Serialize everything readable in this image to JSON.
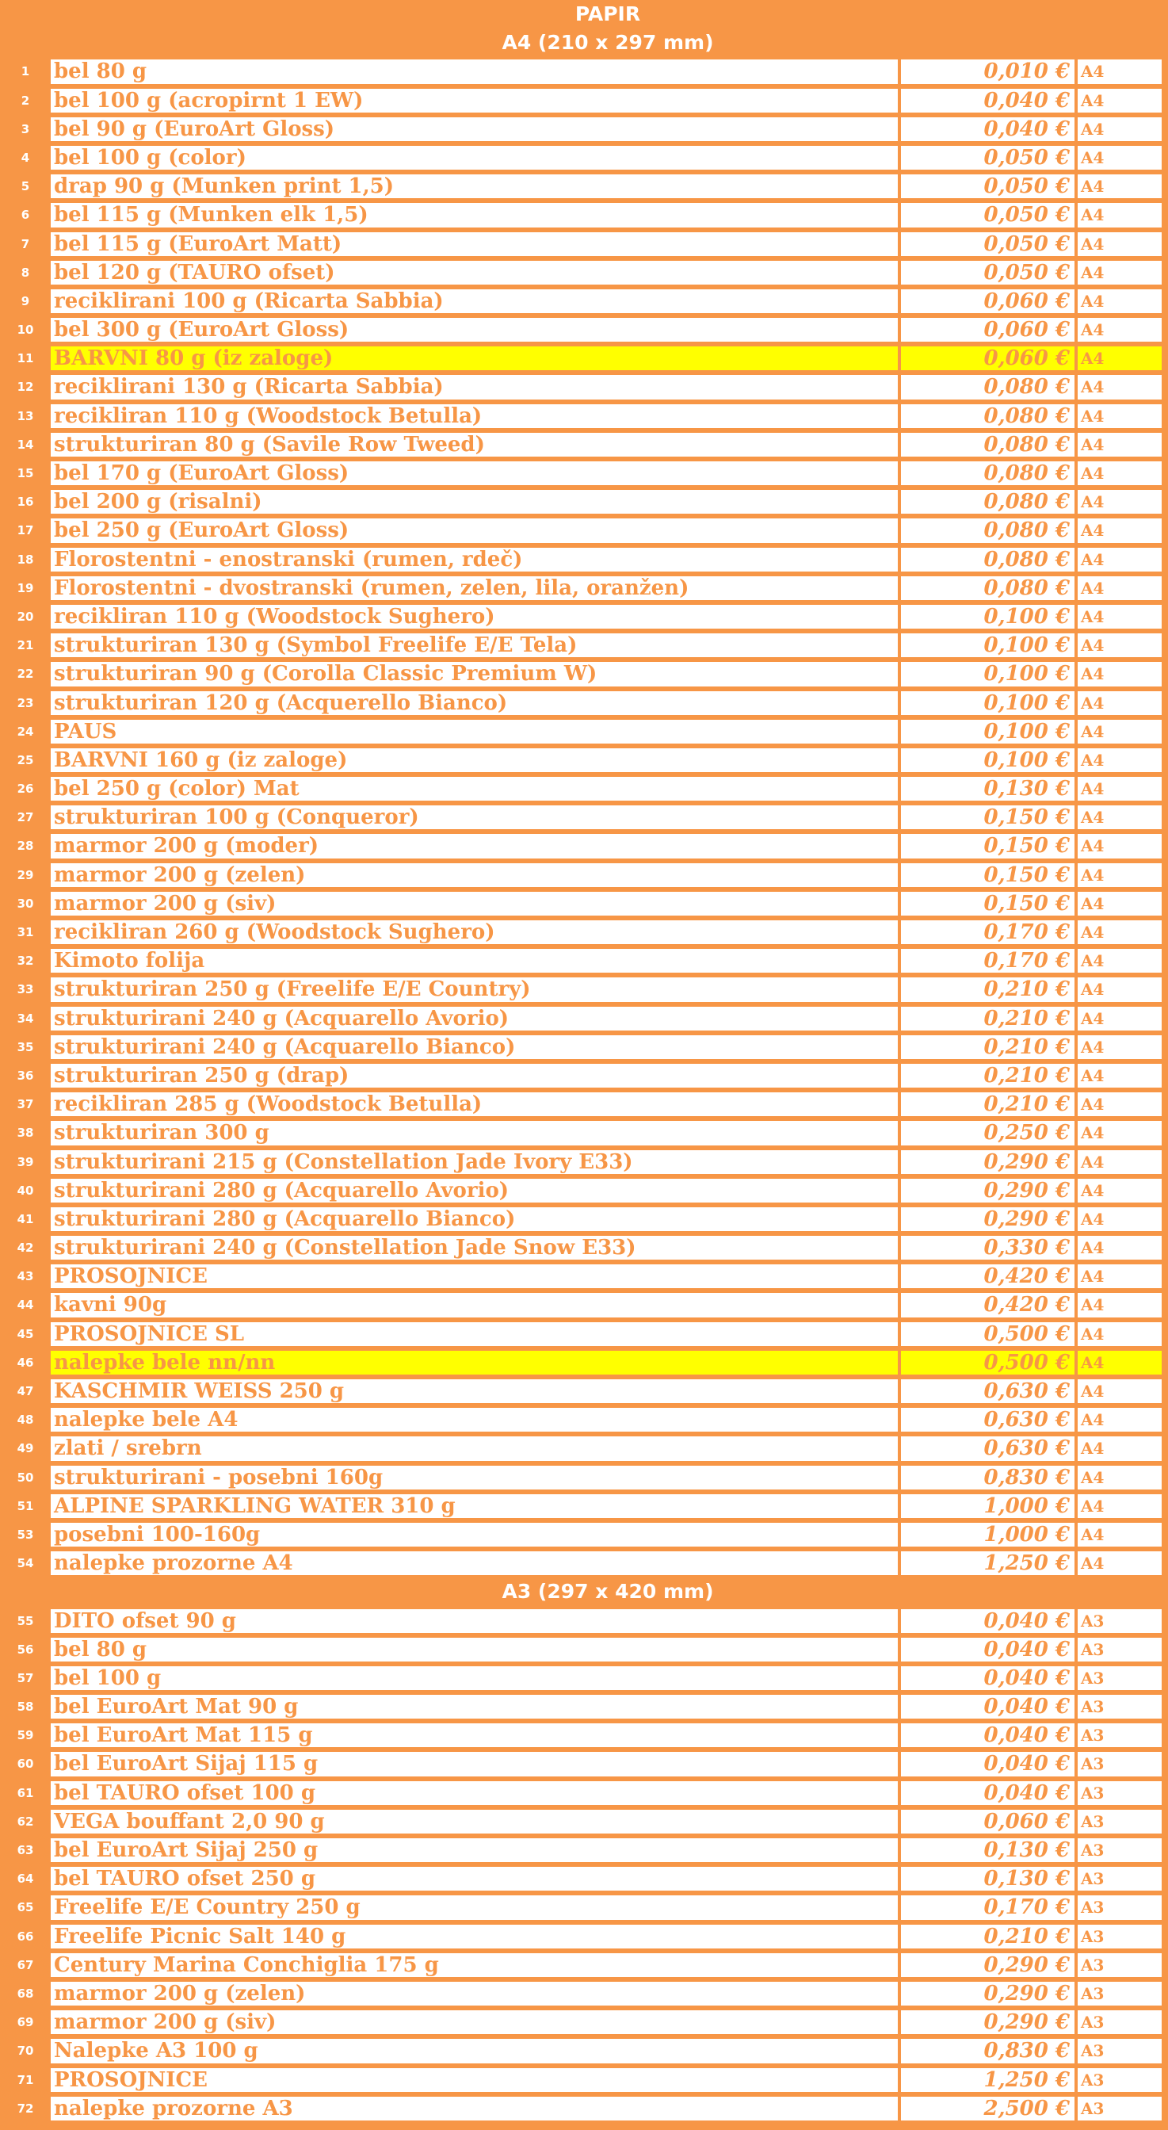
{
  "title": "PAPIR",
  "sections": [
    {
      "header": "A4 (210 x 297 mm)",
      "rows": [
        {
          "num": "1",
          "name": "bel 80 g",
          "price": "0,010 €",
          "format": "A4"
        },
        {
          "num": "2",
          "name": "bel 100 g (acropirnt 1 EW)",
          "price": "0,040 €",
          "format": "A4"
        },
        {
          "num": "3",
          "name": "bel 90 g (EuroArt Gloss)",
          "price": "0,040 €",
          "format": "A4"
        },
        {
          "num": "4",
          "name": "bel 100 g (color)",
          "price": "0,050 €",
          "format": "A4"
        },
        {
          "num": "5",
          "name": "drap 90 g (Munken print 1,5)",
          "price": "0,050 €",
          "format": "A4"
        },
        {
          "num": "6",
          "name": "bel 115 g (Munken elk 1,5)",
          "price": "0,050 €",
          "format": "A4"
        },
        {
          "num": "7",
          "name": "bel 115 g (EuroArt Matt)",
          "price": "0,050 €",
          "format": "A4"
        },
        {
          "num": "8",
          "name": "bel 120 g (TAURO ofset)",
          "price": "0,050 €",
          "format": "A4"
        },
        {
          "num": "9",
          "name": "reciklirani 100 g (Ricarta Sabbia)",
          "price": "0,060 €",
          "format": "A4"
        },
        {
          "num": "10",
          "name": "bel 300 g (EuroArt Gloss)",
          "price": "0,060 €",
          "format": "A4"
        },
        {
          "num": "11",
          "name": "BARVNI 80 g (iz zaloge)",
          "price": "0,060 €",
          "format": "A4",
          "highlight": true
        },
        {
          "num": "12",
          "name": "reciklirani 130 g (Ricarta Sabbia)",
          "price": "0,080 €",
          "format": "A4"
        },
        {
          "num": "13",
          "name": "recikliran 110 g (Woodstock Betulla)",
          "price": "0,080 €",
          "format": "A4"
        },
        {
          "num": "14",
          "name": "strukturiran 80 g (Savile Row Tweed)",
          "price": "0,080 €",
          "format": "A4"
        },
        {
          "num": "15",
          "name": "bel 170 g (EuroArt Gloss)",
          "price": "0,080 €",
          "format": "A4"
        },
        {
          "num": "16",
          "name": "bel 200 g (risalni)",
          "price": "0,080 €",
          "format": "A4"
        },
        {
          "num": "17",
          "name": "bel 250 g (EuroArt Gloss)",
          "price": "0,080 €",
          "format": "A4"
        },
        {
          "num": "18",
          "name": "Florostentni - enostranski (rumen, rdeč)",
          "price": "0,080 €",
          "format": "A4"
        },
        {
          "num": "19",
          "name": "Florostentni - dvostranski (rumen, zelen, lila, oranžen)",
          "price": "0,080 €",
          "format": "A4"
        },
        {
          "num": "20",
          "name": "recikliran 110 g (Woodstock Sughero)",
          "price": "0,100 €",
          "format": "A4"
        },
        {
          "num": "21",
          "name": "strukturiran 130 g (Symbol Freelife E/E Tela)",
          "price": "0,100 €",
          "format": "A4"
        },
        {
          "num": "22",
          "name": "strukturiran 90 g (Corolla Classic Premium W)",
          "price": "0,100 €",
          "format": "A4"
        },
        {
          "num": "23",
          "name": "strukturiran 120 g (Acquerello Bianco)",
          "price": "0,100 €",
          "format": "A4"
        },
        {
          "num": "24",
          "name": "PAUS",
          "price": "0,100 €",
          "format": "A4"
        },
        {
          "num": "25",
          "name": "BARVNI 160 g (iz zaloge)",
          "price": "0,100 €",
          "format": "A4"
        },
        {
          "num": "26",
          "name": "bel 250 g (color) Mat",
          "price": "0,130 €",
          "format": "A4"
        },
        {
          "num": "27",
          "name": "strukturiran 100 g (Conqueror)",
          "price": "0,150 €",
          "format": "A4"
        },
        {
          "num": "28",
          "name": "marmor 200 g (moder)",
          "price": "0,150 €",
          "format": "A4"
        },
        {
          "num": "29",
          "name": "marmor 200 g (zelen)",
          "price": "0,150 €",
          "format": "A4"
        },
        {
          "num": "30",
          "name": "marmor 200 g (siv)",
          "price": "0,150 €",
          "format": "A4"
        },
        {
          "num": "31",
          "name": "recikliran 260 g (Woodstock Sughero)",
          "price": "0,170 €",
          "format": "A4"
        },
        {
          "num": "32",
          "name": "Kimoto folija",
          "price": "0,170 €",
          "format": "A4"
        },
        {
          "num": "33",
          "name": "strukturiran 250 g (Freelife E/E Country)",
          "price": "0,210 €",
          "format": "A4"
        },
        {
          "num": "34",
          "name": "strukturirani 240 g (Acquarello Avorio)",
          "price": "0,210 €",
          "format": "A4"
        },
        {
          "num": "35",
          "name": "strukturirani 240 g (Acquarello Bianco)",
          "price": "0,210 €",
          "format": "A4"
        },
        {
          "num": "36",
          "name": "strukturiran 250 g (drap)",
          "price": "0,210 €",
          "format": "A4"
        },
        {
          "num": "37",
          "name": "recikliran 285 g (Woodstock Betulla)",
          "price": "0,210 €",
          "format": "A4"
        },
        {
          "num": "38",
          "name": "strukturiran 300 g",
          "price": "0,250 €",
          "format": "A4"
        },
        {
          "num": "39",
          "name": "strukturirani 215 g (Constellation Jade Ivory E33)",
          "price": "0,290 €",
          "format": "A4"
        },
        {
          "num": "40",
          "name": "strukturirani 280 g (Acquarello Avorio)",
          "price": "0,290 €",
          "format": "A4"
        },
        {
          "num": "41",
          "name": "strukturirani 280 g (Acquarello Bianco)",
          "price": "0,290 €",
          "format": "A4"
        },
        {
          "num": "42",
          "name": "strukturirani 240 g (Constellation Jade Snow E33)",
          "price": "0,330 €",
          "format": "A4"
        },
        {
          "num": "43",
          "name": "PROSOJNICE",
          "price": "0,420 €",
          "format": "A4"
        },
        {
          "num": "44",
          "name": "kavni 90g",
          "price": "0,420 €",
          "format": "A4"
        },
        {
          "num": "45",
          "name": "PROSOJNICE SL",
          "price": "0,500 €",
          "format": "A4"
        },
        {
          "num": "46",
          "name": "nalepke bele nn/nn",
          "price": "0,500 €",
          "format": "A4",
          "highlight": true
        },
        {
          "num": "47",
          "name": "KASCHMIR WEISS 250 g",
          "price": "0,630 €",
          "format": "A4"
        },
        {
          "num": "48",
          "name": "nalepke bele A4",
          "price": "0,630 €",
          "format": "A4"
        },
        {
          "num": "49",
          "name": "zlati / srebrn",
          "price": "0,630 €",
          "format": "A4"
        },
        {
          "num": "50",
          "name": "strukturirani - posebni 160g",
          "price": "0,830 €",
          "format": "A4"
        },
        {
          "num": "51",
          "name": "ALPINE SPARKLING WATER 310 g",
          "price": "1,000 €",
          "format": "A4"
        },
        {
          "num": "53",
          "name": "posebni 100-160g",
          "price": "1,000 €",
          "format": "A4"
        },
        {
          "num": "54",
          "name": "nalepke prozorne A4",
          "price": "1,250 €",
          "format": "A4"
        }
      ]
    },
    {
      "header": "A3 (297 x 420 mm)",
      "rows": [
        {
          "num": "55",
          "name": "DITO ofset 90 g",
          "price": "0,040 €",
          "format": "A3"
        },
        {
          "num": "56",
          "name": "bel 80 g",
          "price": "0,040 €",
          "format": "A3"
        },
        {
          "num": "57",
          "name": "bel 100 g",
          "price": "0,040 €",
          "format": "A3"
        },
        {
          "num": "58",
          "name": "bel EuroArt Mat 90 g",
          "price": "0,040 €",
          "format": "A3"
        },
        {
          "num": "59",
          "name": "bel EuroArt Mat 115 g",
          "price": "0,040 €",
          "format": "A3"
        },
        {
          "num": "60",
          "name": "bel EuroArt Sijaj 115 g",
          "price": "0,040 €",
          "format": "A3"
        },
        {
          "num": "61",
          "name": "bel TAURO ofset 100 g",
          "price": "0,040 €",
          "format": "A3"
        },
        {
          "num": "62",
          "name": "VEGA bouffant 2,0 90 g",
          "price": "0,060 €",
          "format": "A3"
        },
        {
          "num": "63",
          "name": "bel EuroArt Sijaj 250 g",
          "price": "0,130 €",
          "format": "A3"
        },
        {
          "num": "64",
          "name": "bel TAURO ofset 250 g",
          "price": "0,130 €",
          "format": "A3"
        },
        {
          "num": "65",
          "name": "Freelife E/E Country 250 g",
          "price": "0,170 €",
          "format": "A3"
        },
        {
          "num": "66",
          "name": "Freelife Picnic Salt 140 g",
          "price": "0,210 €",
          "format": "A3"
        },
        {
          "num": "67",
          "name": "Century Marina Conchiglia 175 g",
          "price": "0,290 €",
          "format": "A3"
        },
        {
          "num": "68",
          "name": "marmor 200 g (zelen)",
          "price": "0,290 €",
          "format": "A3"
        },
        {
          "num": "69",
          "name": "marmor 200 g (siv)",
          "price": "0,290 €",
          "format": "A3"
        },
        {
          "num": "70",
          "name": "Nalepke A3 100 g",
          "price": "0,830 €",
          "format": "A3"
        },
        {
          "num": "71",
          "name": "PROSOJNICE",
          "price": "1,250 €",
          "format": "A3"
        },
        {
          "num": "72",
          "name": "nalepke prozorne A3",
          "price": "2,500 €",
          "format": "A3"
        }
      ]
    }
  ]
}
